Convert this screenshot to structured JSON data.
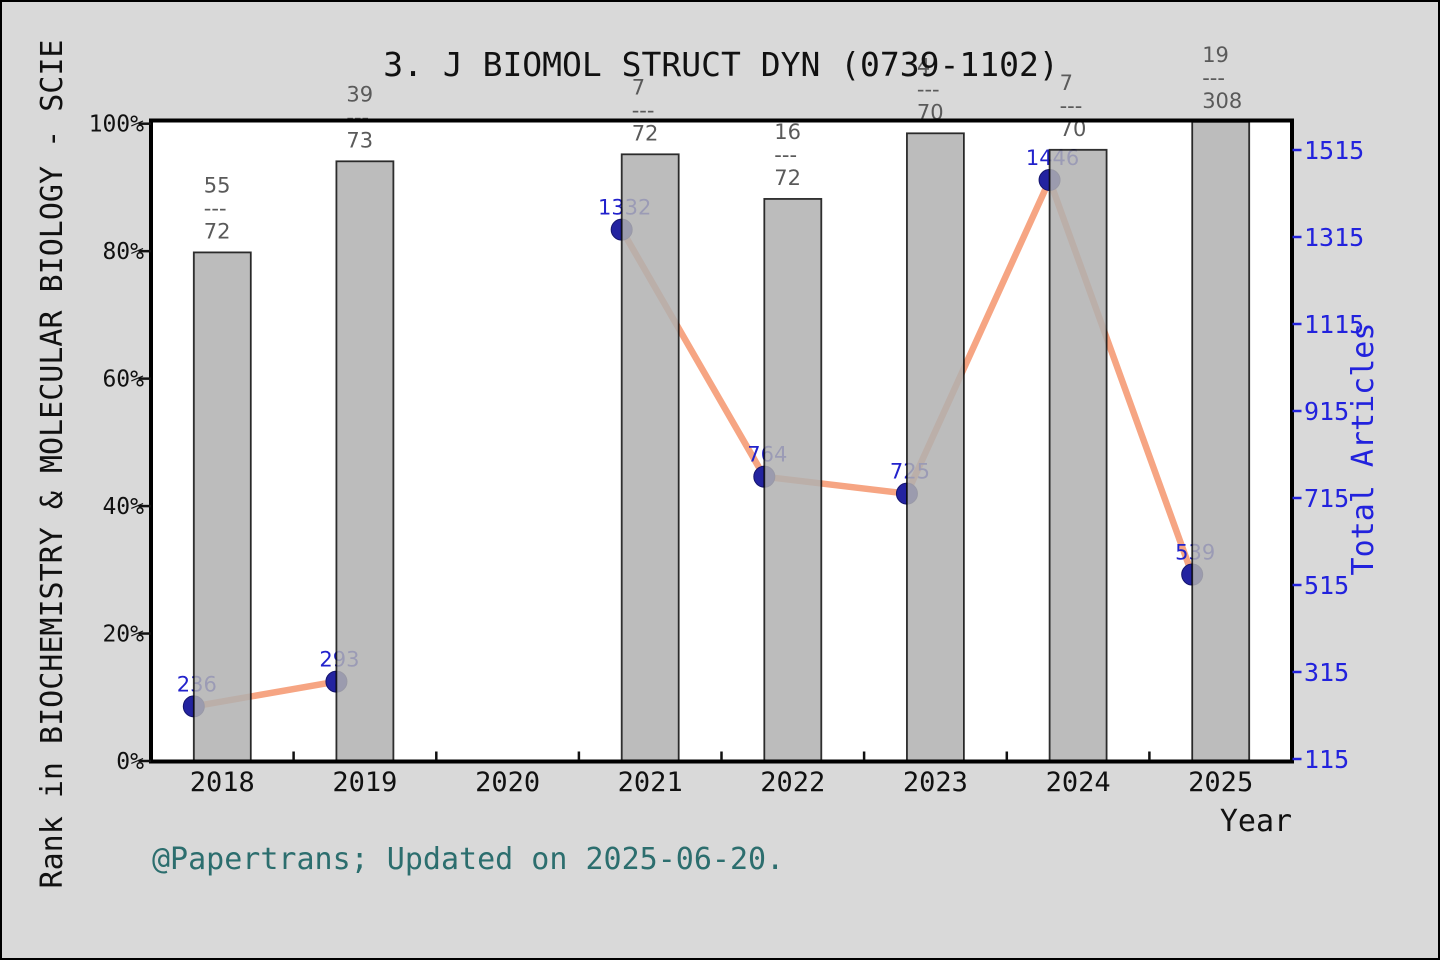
{
  "page": {
    "background_color": "#d9d9d9",
    "frame_border_color": "#000000",
    "plot_background_color": "#ffffff"
  },
  "footer": {
    "credit": "@Papertrans; Updated on 2025-06-20."
  },
  "chart_data": {
    "type": "bar+line-dual-axis",
    "title": "3. J BIOMOL STRUCT DYN (0739-1102)",
    "xlabel": "Year",
    "categories": [
      "2018",
      "2019",
      "2020",
      "2021",
      "2022",
      "2023",
      "2024",
      "2025"
    ],
    "x_minor_ticks_between_years": true,
    "grid": false,
    "legend": "none",
    "left_axis": {
      "label": "Rank in BIOCHEMISTRY & MOLECULAR BIOLOGY - SCIE",
      "tick_labels": [
        "0%",
        "20%",
        "40%",
        "60%",
        "80%",
        "100%"
      ],
      "tick_values": [
        0,
        20,
        40,
        60,
        80,
        100
      ],
      "range_pct": [
        0,
        100
      ],
      "color": "#111111"
    },
    "right_axis": {
      "label": "Total Articles",
      "ticks": [
        115,
        315,
        515,
        715,
        915,
        1115,
        1315,
        1515
      ],
      "color": "#2222dd"
    },
    "series": [
      {
        "name": "rank-percentile-bars",
        "type": "bar",
        "axis": "left",
        "values_pct": [
          79.8,
          94.1,
          null,
          95.2,
          88.2,
          98.5,
          95.9,
          100.3
        ],
        "fraction_labels": [
          "55/72",
          "39/73",
          null,
          "7/72",
          "16/72",
          "4/70",
          "7/70",
          "19/308"
        ],
        "bar_fill": "#b0b0b0",
        "bar_opacity": 0.85,
        "bar_edge": "#000000",
        "fraction_label_color": "#5a5a5a"
      },
      {
        "name": "total-articles-line",
        "type": "line",
        "axis": "right",
        "values": [
          236,
          293,
          null,
          1332,
          764,
          725,
          1446,
          539
        ],
        "line_color": "#f6a583",
        "marker_color": "#2323a0",
        "marker_edge": "#15156e",
        "value_label_color": "#2222cc"
      }
    ]
  }
}
